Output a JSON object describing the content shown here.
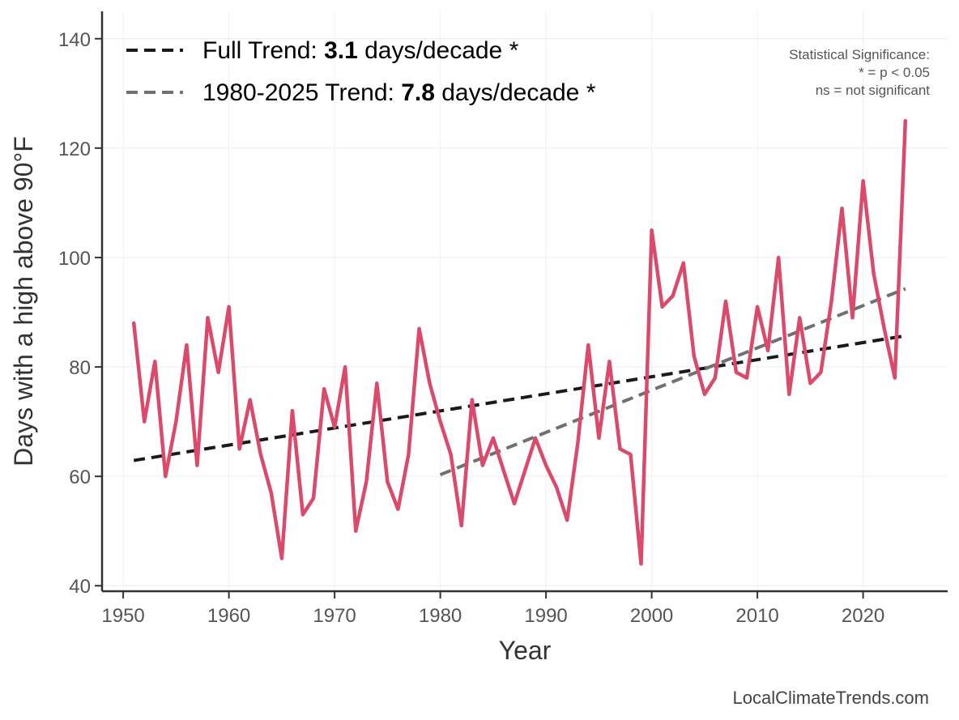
{
  "chart_data": {
    "type": "line",
    "title": "",
    "xlabel": "Year",
    "ylabel": "Days with a high above 90°F",
    "xlim": [
      1948,
      2028
    ],
    "ylim": [
      39,
      145
    ],
    "x_ticks": [
      1950,
      1960,
      1970,
      1980,
      1990,
      2000,
      2010,
      2020
    ],
    "y_ticks": [
      40,
      60,
      80,
      100,
      120,
      140
    ],
    "grid": true,
    "series": [
      {
        "color": "#dc4a6b",
        "x": [
          1951,
          1952,
          1953,
          1954,
          1955,
          1956,
          1957,
          1958,
          1959,
          1960,
          1961,
          1962,
          1963,
          1964,
          1965,
          1966,
          1967,
          1968,
          1969,
          1970,
          1971,
          1972,
          1973,
          1974,
          1975,
          1976,
          1977,
          1978,
          1979,
          1980,
          1981,
          1982,
          1983,
          1984,
          1985,
          1986,
          1987,
          1988,
          1989,
          1990,
          1991,
          1992,
          1993,
          1994,
          1995,
          1996,
          1997,
          1998,
          1999,
          2000,
          2001,
          2002,
          2003,
          2004,
          2005,
          2006,
          2007,
          2008,
          2009,
          2010,
          2011,
          2012,
          2013,
          2014,
          2015,
          2016,
          2017,
          2018,
          2019,
          2020,
          2021,
          2022,
          2023,
          2024
        ],
        "y": [
          88,
          70,
          81,
          60,
          70,
          84,
          62,
          89,
          79,
          91,
          65,
          74,
          64,
          57,
          45,
          72,
          53,
          56,
          76,
          69,
          80,
          50,
          59,
          77,
          59,
          54,
          64,
          87,
          77,
          70,
          64,
          51,
          74,
          62,
          67,
          61,
          55,
          61,
          67,
          62,
          58,
          52,
          66,
          84,
          67,
          81,
          65,
          64,
          44,
          105,
          91,
          93,
          99,
          82,
          75,
          78,
          92,
          79,
          78,
          91,
          83,
          100,
          75,
          89,
          77,
          79,
          92,
          109,
          89,
          114,
          97,
          87,
          78,
          125
        ]
      }
    ],
    "trend_lines": [
      {
        "label_prefix": "Full Trend: ",
        "value": "3.1",
        "label_suffix": " days/decade *",
        "color": "#1a1a1a",
        "x": [
          1951,
          2024
        ],
        "y": [
          62.9,
          85.7
        ]
      },
      {
        "label_prefix": "1980-2025 Trend: ",
        "value": "7.8",
        "label_suffix": " days/decade *",
        "color": "#707070",
        "x": [
          1980,
          2024
        ],
        "y": [
          60.3,
          94.3
        ]
      }
    ],
    "legend_position": "top-left",
    "annotation": {
      "lines": [
        "Statistical Significance:",
        "* = p < 0.05",
        "ns = not significant"
      ],
      "position": "top-right"
    },
    "credit": "LocalClimateTrends.com"
  }
}
